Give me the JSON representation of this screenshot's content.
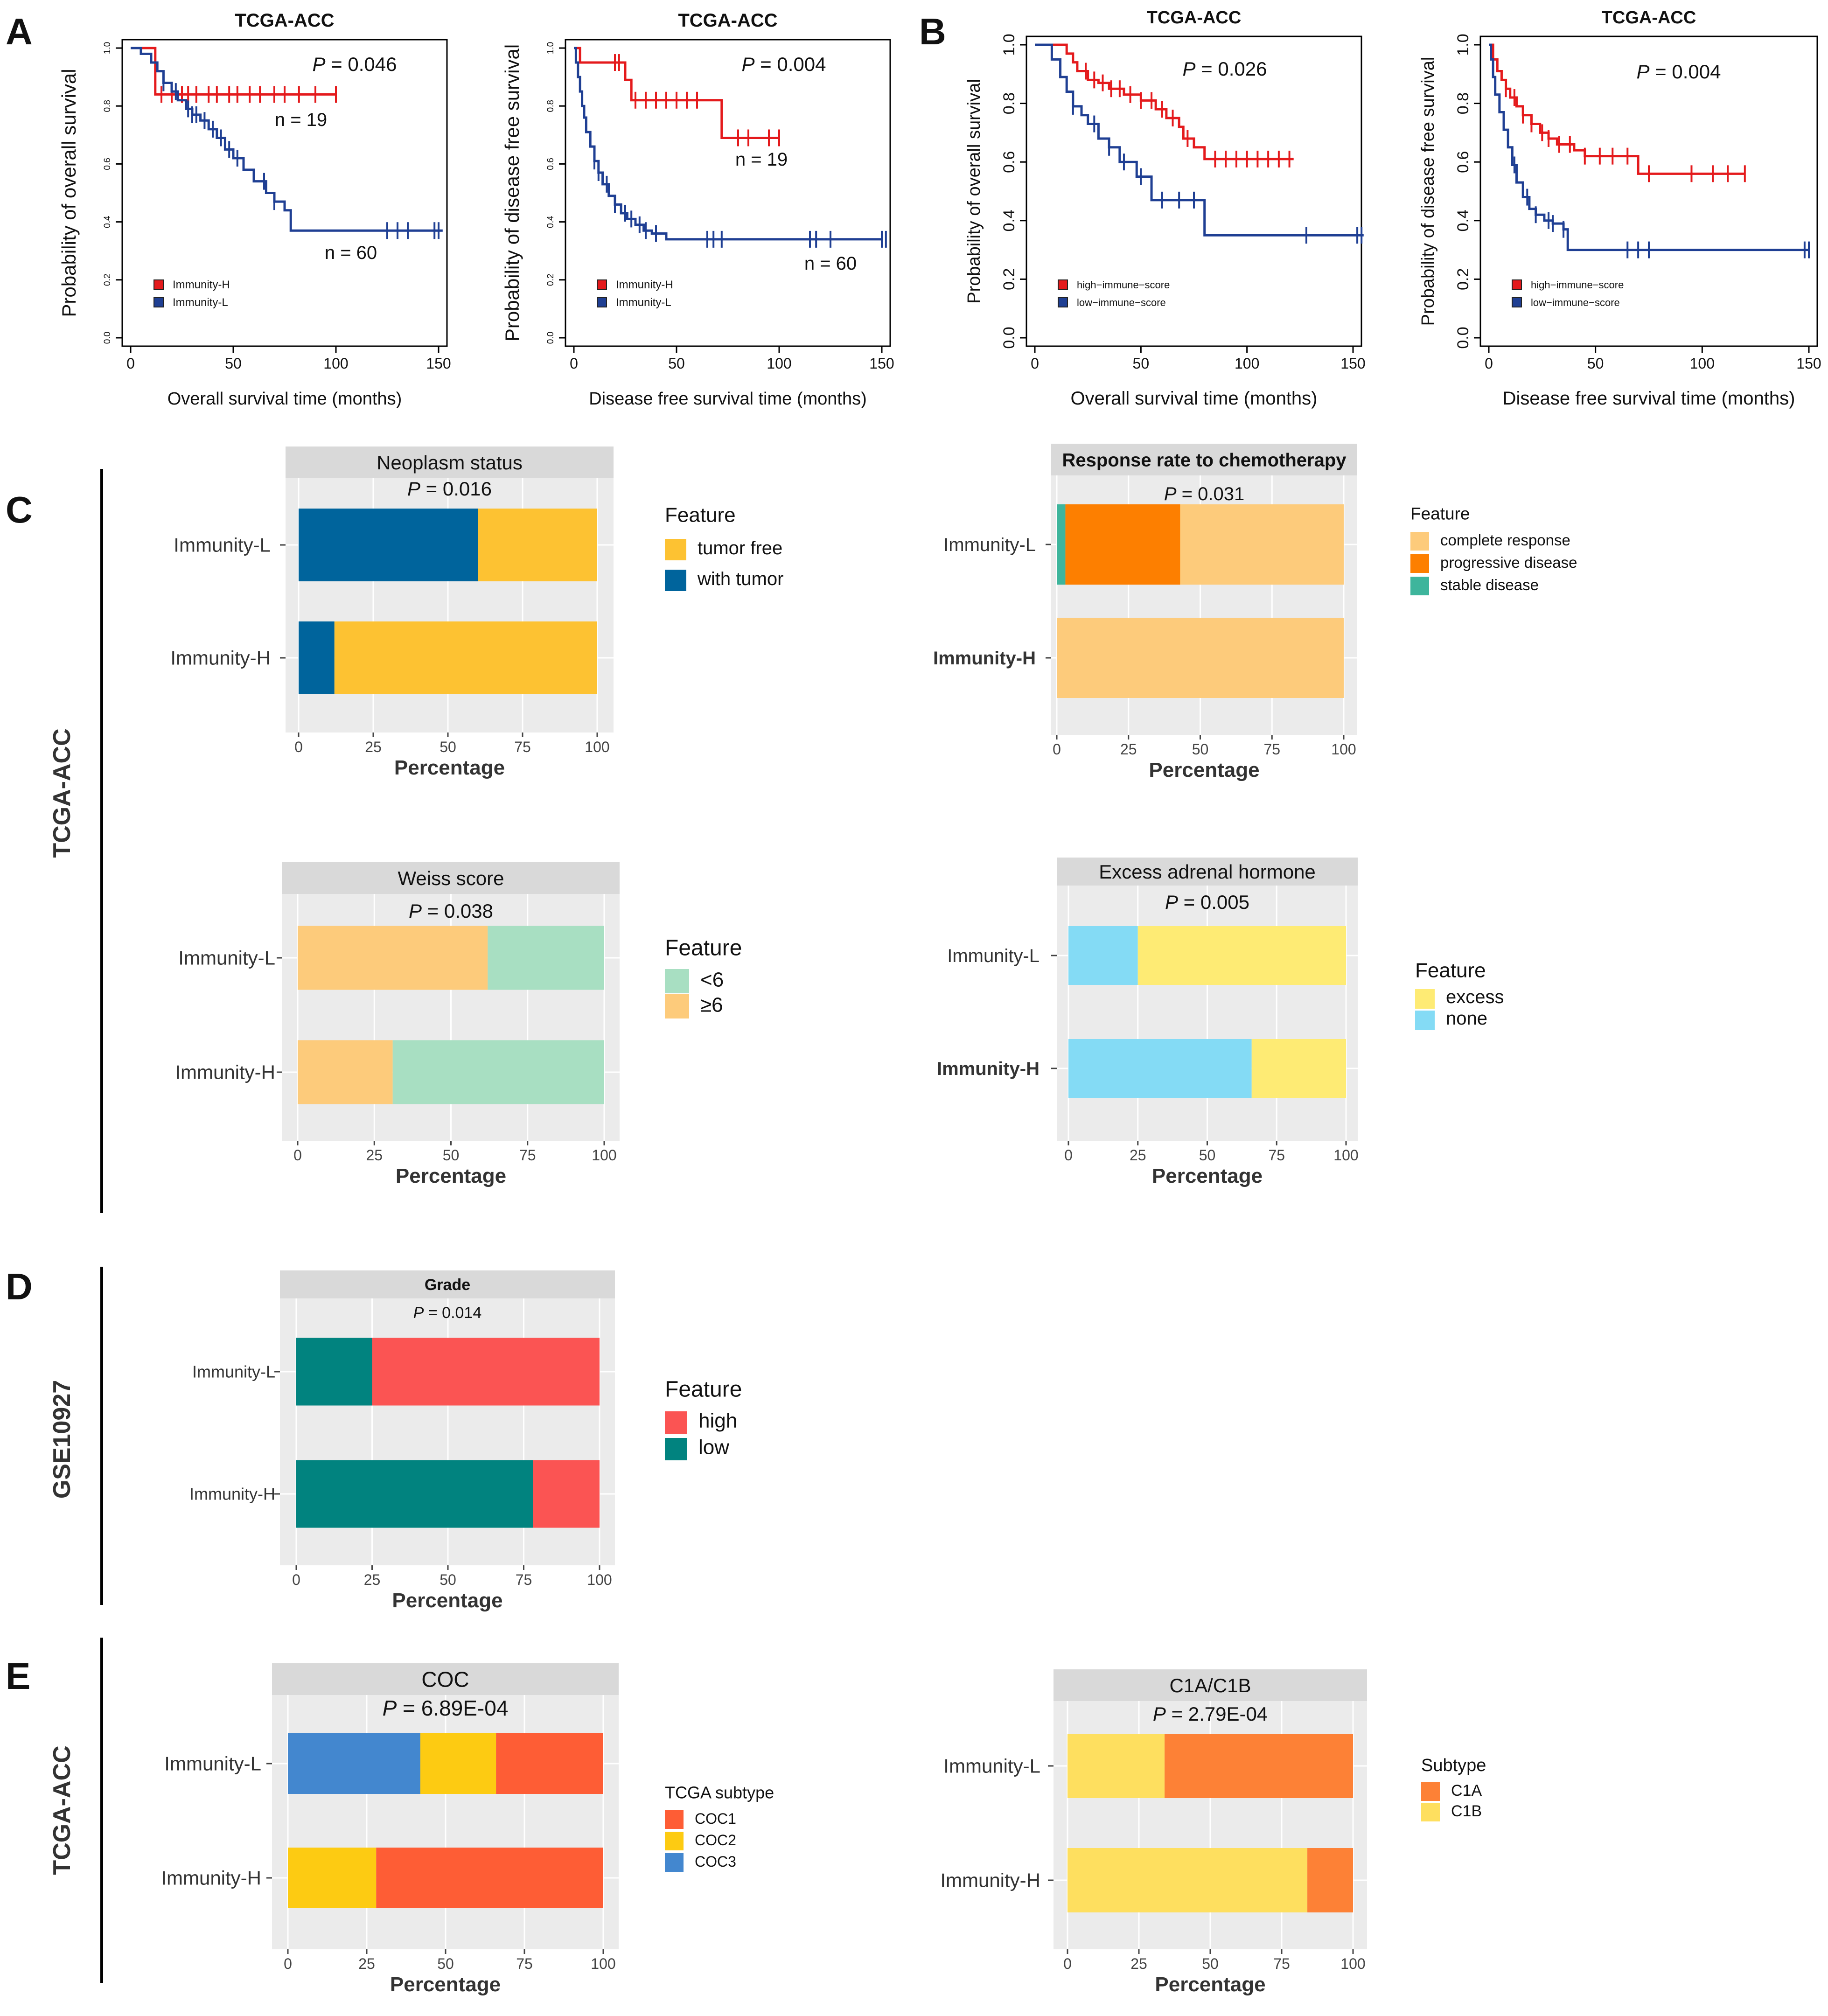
{
  "panel_letters": [
    "A",
    "B",
    "C",
    "D",
    "E"
  ],
  "group_labels": {
    "tcga_c": "TCGA-ACC",
    "gse": "GSE10927",
    "tcga_e": "TCGA-ACC"
  },
  "colors": {
    "red": "#e41a1c",
    "navy": "#1f3f93",
    "teal_blue": "#00649c",
    "gold": "#fdc232",
    "light_orange": "#fdcb7b",
    "orange": "#fd7f00",
    "teal_green": "#3eb59c",
    "mint": "#a8dfc2",
    "yellow": "#feeb74",
    "sky": "#84dbf5",
    "coral": "#fb5453",
    "dark_teal": "#01837f",
    "tomato": "#fe5d35",
    "amber": "#fdcb12",
    "steel_blue": "#4387cf",
    "orange2": "#fd8136",
    "light_yellow": "#fedf5f",
    "panel_header": "#d9d9d9",
    "panel_bg": "#ebebeb"
  },
  "chart_data": [
    {
      "id": "A1",
      "type": "line",
      "title": "TCGA-ACC",
      "xlabel": "Overall survival time (months)",
      "ylabel": "Probability of overall survival",
      "xlim": [
        0,
        150
      ],
      "ylim": [
        0,
        1
      ],
      "xticks": [
        "0",
        "50",
        "100",
        "150"
      ],
      "yticks": [
        "0.0",
        "0.2",
        "0.4",
        "0.6",
        "0.8",
        "1.0"
      ],
      "pvalue": "0.046",
      "annotations": [
        "n = 19",
        "n = 60"
      ],
      "legend": [
        "Immunity-H",
        "Immunity-L"
      ],
      "series": [
        {
          "name": "Immunity-H",
          "color": "#e41a1c",
          "x": [
            0,
            12,
            12,
            100
          ],
          "y": [
            1,
            1,
            0.84,
            0.84
          ],
          "censor": [
            15,
            20,
            25,
            28,
            32,
            38,
            42,
            48,
            52,
            58,
            63,
            70,
            75,
            82,
            90,
            100
          ]
        },
        {
          "name": "Immunity-L",
          "color": "#1f3f93",
          "x": [
            0,
            5,
            10,
            13,
            16,
            20,
            23,
            27,
            30,
            34,
            38,
            42,
            46,
            50,
            55,
            60,
            66,
            70,
            75,
            78,
            78,
            152
          ],
          "y": [
            1,
            0.98,
            0.95,
            0.92,
            0.88,
            0.85,
            0.82,
            0.79,
            0.77,
            0.75,
            0.72,
            0.69,
            0.65,
            0.62,
            0.58,
            0.54,
            0.5,
            0.47,
            0.44,
            0.41,
            0.37,
            0.37
          ],
          "censor": [
            16,
            22,
            28,
            30,
            32,
            36,
            40,
            44,
            48,
            52,
            65,
            70,
            125,
            130,
            135,
            148,
            150
          ]
        }
      ]
    },
    {
      "id": "A2",
      "type": "line",
      "title": "TCGA-ACC",
      "xlabel": "Disease free survival time (months)",
      "ylabel": "Probability of disease free survival",
      "xlim": [
        0,
        150
      ],
      "ylim": [
        0,
        1
      ],
      "xticks": [
        "0",
        "50",
        "100",
        "150"
      ],
      "yticks": [
        "0.0",
        "0.2",
        "0.4",
        "0.6",
        "0.8",
        "1.0"
      ],
      "pvalue": "0.004",
      "annotations": [
        "n = 19",
        "n = 60"
      ],
      "legend": [
        "Immunity-H",
        "Immunity-L"
      ],
      "series": [
        {
          "name": "Immunity-H",
          "color": "#e41a1c",
          "x": [
            0,
            3,
            18,
            25,
            28,
            68,
            72,
            100
          ],
          "y": [
            1,
            0.95,
            0.95,
            0.89,
            0.82,
            0.82,
            0.69,
            0.69
          ],
          "censor": [
            20,
            22,
            30,
            35,
            40,
            45,
            50,
            55,
            60,
            80,
            85,
            95,
            100
          ]
        },
        {
          "name": "Immunity-L",
          "color": "#1f3f93",
          "x": [
            0,
            1,
            2,
            3,
            4,
            5,
            6,
            8,
            10,
            12,
            14,
            17,
            20,
            23,
            26,
            30,
            34,
            38,
            45,
            150
          ],
          "y": [
            1,
            0.95,
            0.9,
            0.85,
            0.8,
            0.76,
            0.71,
            0.66,
            0.61,
            0.57,
            0.53,
            0.49,
            0.46,
            0.43,
            0.41,
            0.39,
            0.37,
            0.36,
            0.34,
            0.34
          ],
          "censor": [
            10,
            12,
            16,
            20,
            25,
            28,
            32,
            35,
            40,
            65,
            68,
            72,
            115,
            118,
            125,
            150,
            152
          ]
        }
      ]
    },
    {
      "id": "B1",
      "type": "line",
      "title": "TCGA-ACC",
      "xlabel": "Overall survival time (months)",
      "ylabel": "Probability of overall survival",
      "xlim": [
        0,
        150
      ],
      "ylim": [
        0,
        1
      ],
      "xticks": [
        "0",
        "50",
        "100",
        "150"
      ],
      "yticks": [
        "0.0",
        "0.2",
        "0.4",
        "0.6",
        "0.8",
        "1.0"
      ],
      "pvalue": "0.026",
      "legend": [
        "high−immune−score",
        "low−immune−score"
      ],
      "series": [
        {
          "name": "high-immune-score",
          "color": "#e41a1c",
          "x": [
            0,
            12,
            15,
            18,
            20,
            25,
            30,
            35,
            42,
            50,
            57,
            62,
            68,
            70,
            75,
            80,
            122
          ],
          "y": [
            1,
            1,
            0.97,
            0.94,
            0.91,
            0.88,
            0.87,
            0.85,
            0.83,
            0.81,
            0.78,
            0.75,
            0.72,
            0.68,
            0.65,
            0.61,
            0.61
          ],
          "censor": [
            24,
            28,
            32,
            36,
            40,
            45,
            50,
            55,
            60,
            65,
            72,
            85,
            90,
            95,
            100,
            105,
            110,
            115,
            120
          ]
        },
        {
          "name": "low-immune-score",
          "color": "#1f3f93",
          "x": [
            0,
            8,
            12,
            15,
            18,
            22,
            25,
            30,
            35,
            40,
            48,
            55,
            80,
            80,
            155
          ],
          "y": [
            1,
            0.95,
            0.89,
            0.84,
            0.79,
            0.76,
            0.73,
            0.68,
            0.65,
            0.6,
            0.55,
            0.47,
            0.47,
            0.35,
            0.35
          ],
          "censor": [
            18,
            28,
            35,
            42,
            50,
            60,
            68,
            75,
            128,
            152,
            154
          ]
        }
      ]
    },
    {
      "id": "B2",
      "type": "line",
      "title": "TCGA-ACC",
      "xlabel": "Disease free survival time (months)",
      "ylabel": "Probability of disease free survival",
      "xlim": [
        0,
        150
      ],
      "ylim": [
        0,
        1
      ],
      "xticks": [
        "0",
        "50",
        "100",
        "150"
      ],
      "yticks": [
        "0.0",
        "0.2",
        "0.4",
        "0.6",
        "0.8",
        "1.0"
      ],
      "pvalue": "0.004",
      "legend": [
        "high−immune−score",
        "low−immune−score"
      ],
      "series": [
        {
          "name": "high-immune-score",
          "color": "#e41a1c",
          "x": [
            0,
            2,
            4,
            6,
            8,
            10,
            13,
            16,
            20,
            24,
            28,
            32,
            40,
            45,
            70,
            120
          ],
          "y": [
            1,
            0.95,
            0.91,
            0.88,
            0.85,
            0.82,
            0.79,
            0.76,
            0.73,
            0.7,
            0.68,
            0.66,
            0.64,
            0.62,
            0.56,
            0.56
          ],
          "censor": [
            8,
            12,
            16,
            20,
            25,
            28,
            33,
            38,
            45,
            52,
            58,
            65,
            75,
            95,
            105,
            112,
            120
          ]
        },
        {
          "name": "low-immune-score",
          "color": "#1f3f93",
          "x": [
            0,
            1,
            2,
            3,
            5,
            7,
            9,
            11,
            13,
            16,
            19,
            22,
            26,
            30,
            35,
            37,
            150
          ],
          "y": [
            1,
            0.95,
            0.89,
            0.83,
            0.77,
            0.71,
            0.65,
            0.59,
            0.53,
            0.48,
            0.44,
            0.42,
            0.4,
            0.39,
            0.37,
            0.3,
            0.3
          ],
          "censor": [
            12,
            18,
            22,
            28,
            30,
            35,
            65,
            70,
            75,
            148,
            150
          ]
        }
      ]
    },
    {
      "id": "C1",
      "type": "bar",
      "title": "Neoplasm status",
      "pvalue": "0.016",
      "categories": [
        "Immunity-L",
        "Immunity-H"
      ],
      "xlabel": "Percentage",
      "xlim": [
        0,
        100
      ],
      "xticks": [
        "0",
        "25",
        "50",
        "75",
        "100"
      ],
      "legend_title": "Feature",
      "series": [
        {
          "name": "with tumor",
          "color": "#00649c",
          "values": [
            60,
            12
          ]
        },
        {
          "name": "tumor free",
          "color": "#fdc232",
          "values": [
            40,
            88
          ]
        }
      ],
      "legend": [
        "tumor free",
        "with tumor"
      ]
    },
    {
      "id": "C2",
      "type": "bar",
      "title": "Response rate to chemotherapy",
      "pvalue": "0.031",
      "categories": [
        "Immunity-L",
        "Immunity-H"
      ],
      "xlabel": "Percentage",
      "xlim": [
        0,
        100
      ],
      "xticks": [
        "0",
        "25",
        "50",
        "75",
        "100"
      ],
      "legend_title": "Feature",
      "series": [
        {
          "name": "stable disease",
          "color": "#3eb59c",
          "values": [
            3,
            0
          ]
        },
        {
          "name": "progressive disease",
          "color": "#fd7f00",
          "values": [
            40,
            0
          ]
        },
        {
          "name": "complete response",
          "color": "#fdcb7b",
          "values": [
            57,
            100
          ]
        }
      ],
      "legend": [
        "complete response",
        "progressive disease",
        "stable disease"
      ]
    },
    {
      "id": "C3",
      "type": "bar",
      "title": "Weiss score",
      "pvalue": "0.038",
      "categories": [
        "Immunity-L",
        "Immunity-H"
      ],
      "xlabel": "Percentage",
      "xlim": [
        0,
        100
      ],
      "xticks": [
        "0",
        "25",
        "50",
        "75",
        "100"
      ],
      "legend_title": "Feature",
      "series": [
        {
          "name": "≥6",
          "color": "#fdcb7b",
          "values": [
            62,
            31
          ]
        },
        {
          "name": "<6",
          "color": "#a8dfc2",
          "values": [
            38,
            69
          ]
        }
      ],
      "legend": [
        "<6",
        "≥6"
      ]
    },
    {
      "id": "C4",
      "type": "bar",
      "title": "Excess adrenal hormone",
      "pvalue": "0.005",
      "categories": [
        "Immunity-L",
        "Immunity-H"
      ],
      "xlabel": "Percentage",
      "xlim": [
        0,
        100
      ],
      "xticks": [
        "0",
        "25",
        "50",
        "75",
        "100"
      ],
      "legend_title": "Feature",
      "series": [
        {
          "name": "none",
          "color": "#84dbf5",
          "values": [
            25,
            66
          ]
        },
        {
          "name": "excess",
          "color": "#feeb74",
          "values": [
            75,
            34
          ]
        }
      ],
      "legend": [
        "excess",
        "none"
      ]
    },
    {
      "id": "D1",
      "type": "bar",
      "title": "Grade",
      "pvalue": "0.014",
      "categories": [
        "Immunity-L",
        "Immunity-H"
      ],
      "xlabel": "Percentage",
      "xlim": [
        0,
        100
      ],
      "xticks": [
        "0",
        "25",
        "50",
        "75",
        "100"
      ],
      "legend_title": "Feature",
      "series": [
        {
          "name": "low",
          "color": "#01837f",
          "values": [
            25,
            78
          ]
        },
        {
          "name": "high",
          "color": "#fb5453",
          "values": [
            75,
            22
          ]
        }
      ],
      "legend": [
        "high",
        "low"
      ]
    },
    {
      "id": "E1",
      "type": "bar",
      "title": "COC",
      "pvalue": "6.89E-04",
      "categories": [
        "Immunity-L",
        "Immunity-H"
      ],
      "xlabel": "Percentage",
      "xlim": [
        0,
        100
      ],
      "xticks": [
        "0",
        "25",
        "50",
        "75",
        "100"
      ],
      "legend_title": "TCGA subtype",
      "series": [
        {
          "name": "COC3",
          "color": "#4387cf",
          "values": [
            42,
            0
          ]
        },
        {
          "name": "COC2",
          "color": "#fdcb12",
          "values": [
            24,
            28
          ]
        },
        {
          "name": "COC1",
          "color": "#fe5d35",
          "values": [
            34,
            72
          ]
        }
      ],
      "legend": [
        "COC1",
        "COC2",
        "COC3"
      ]
    },
    {
      "id": "E2",
      "type": "bar",
      "title": "C1A/C1B",
      "pvalue": "2.79E-04",
      "categories": [
        "Immunity-L",
        "Immunity-H"
      ],
      "xlabel": "Percentage",
      "xlim": [
        0,
        100
      ],
      "xticks": [
        "0",
        "25",
        "50",
        "75",
        "100"
      ],
      "legend_title": "Subtype",
      "series": [
        {
          "name": "C1B",
          "color": "#fedf5f",
          "values": [
            34,
            84
          ]
        },
        {
          "name": "C1A",
          "color": "#fd8136",
          "values": [
            66,
            16
          ]
        }
      ],
      "legend": [
        "C1A",
        "C1B"
      ]
    }
  ]
}
